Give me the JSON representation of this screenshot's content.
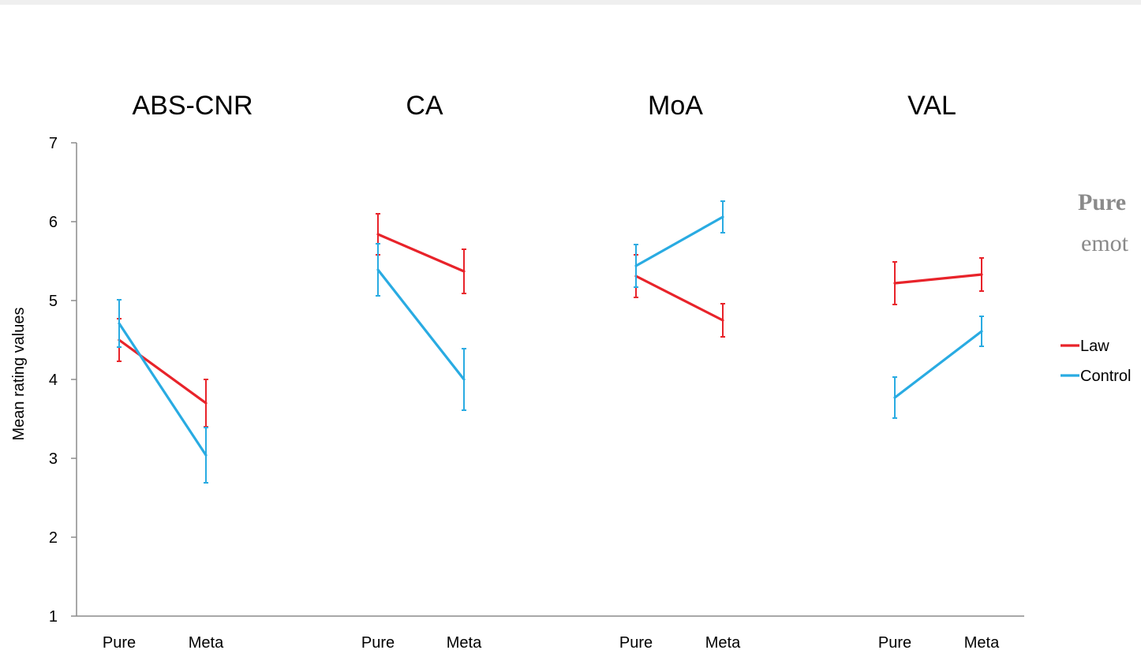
{
  "chart_data": {
    "type": "line",
    "panel_titles": [
      "ABS-CNR",
      "CA",
      "MoA",
      "VAL"
    ],
    "x_categories": [
      "Pure",
      "Meta"
    ],
    "ylabel": "Mean rating values",
    "ylim": [
      1,
      7
    ],
    "yticks": [
      1,
      2,
      3,
      4,
      5,
      6,
      7
    ],
    "series": [
      {
        "name": "Law",
        "color": "#e8232a",
        "panels": [
          {
            "values": [
              4.5,
              3.7
            ],
            "errors": [
              0.27,
              0.3
            ]
          },
          {
            "values": [
              5.84,
              5.37
            ],
            "errors": [
              0.26,
              0.28
            ]
          },
          {
            "values": [
              5.31,
              4.75
            ],
            "errors": [
              0.27,
              0.21
            ]
          },
          {
            "values": [
              5.22,
              5.33
            ],
            "errors": [
              0.27,
              0.21
            ]
          }
        ]
      },
      {
        "name": "Control",
        "color": "#29abe2",
        "panels": [
          {
            "values": [
              4.71,
              3.04
            ],
            "errors": [
              0.3,
              0.35
            ]
          },
          {
            "values": [
              5.39,
              4.0
            ],
            "errors": [
              0.33,
              0.39
            ]
          },
          {
            "values": [
              5.44,
              6.06
            ],
            "errors": [
              0.27,
              0.2
            ]
          },
          {
            "values": [
              3.77,
              4.61
            ],
            "errors": [
              0.26,
              0.19
            ]
          }
        ]
      }
    ],
    "grid": false,
    "legend_position": "right"
  },
  "side_text": {
    "line1": "Pure",
    "line2": "emot"
  }
}
